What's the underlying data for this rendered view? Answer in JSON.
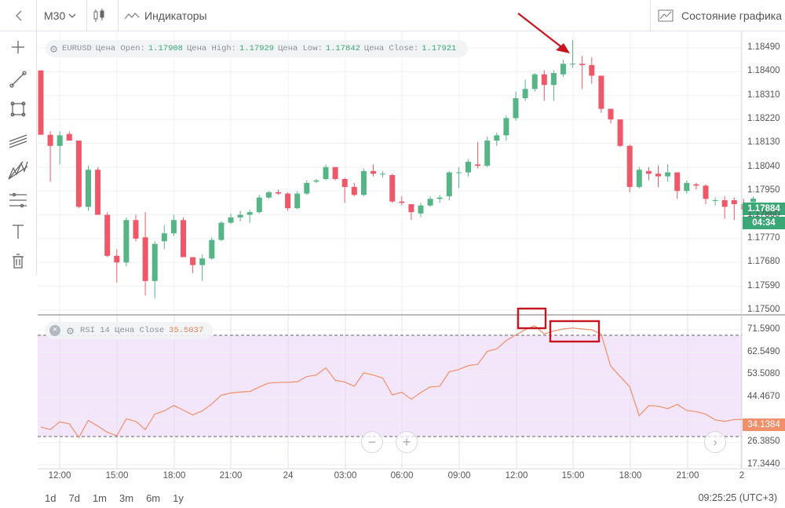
{
  "toolbar": {
    "back_icon": "chevron-left-icon",
    "timeframe": "M30",
    "chart_type_icon": "candlestick-icon",
    "indicators_label": "Индикаторы",
    "chart_state_label": "Состояние графика"
  },
  "drawing_tools": [
    "crosshair-icon",
    "trend-line-icon",
    "rectangle-icon",
    "parallel-channel-icon",
    "pitchfork-icon",
    "fibonacci-icon",
    "text-icon",
    "trash-icon"
  ],
  "main_legend": {
    "symbol": "EURUSD",
    "open_label": "Цена Open:",
    "open": "1.17908",
    "high_label": "Цена High:",
    "high": "1.17929",
    "low_label": "Цена Low:",
    "low": "1.17842",
    "close_label": "Цена Close:",
    "close": "1.17921"
  },
  "rsi_legend": {
    "name": "RSI 14 Цена Close",
    "value": "35.5037"
  },
  "price_axis": {
    "ticks": [
      "1.18490",
      "1.18400",
      "1.18310",
      "1.18220",
      "1.18130",
      "1.18040",
      "1.17950",
      "1.17860",
      "1.17770",
      "1.17680",
      "1.17590",
      "1.17500"
    ],
    "current_price": "1.17884",
    "countdown": "04:34"
  },
  "rsi_axis": {
    "ticks": [
      "71.5900",
      "62.5490",
      "53.5080",
      "44.4670",
      "35.4260",
      "26.3850",
      "17.3440"
    ],
    "current_value": "34.1384"
  },
  "time_axis": [
    "12:00",
    "15:00",
    "18:00",
    "21:00",
    "24",
    "03:00",
    "06:00",
    "09:00",
    "12:00",
    "15:00",
    "18:00",
    "21:00",
    "2"
  ],
  "bottom": {
    "ranges": [
      "1d",
      "7d",
      "1m",
      "3m",
      "6m",
      "1y"
    ],
    "clock": "09:25:25 (UTC+3)"
  },
  "colors": {
    "up": "#56b586",
    "down": "#ef5869",
    "rsi_line": "#f0906a",
    "rsi_band": "#f3e6fb",
    "annotation": "#c8141e"
  },
  "chart_data": [
    {
      "type": "candlestick",
      "symbol": "EURUSD",
      "timeframe": "M30",
      "ylim": [
        1.175,
        1.1853
      ],
      "candles": [
        [
          1.18405,
          1.18405,
          1.18162,
          1.18162
        ],
        [
          1.18162,
          1.18175,
          1.17985,
          1.1812
        ],
        [
          1.1812,
          1.18175,
          1.1805,
          1.1816
        ],
        [
          1.18165,
          1.18175,
          1.1814,
          1.1814
        ],
        [
          1.1814,
          1.1814,
          1.17885,
          1.1789
        ],
        [
          1.1789,
          1.18045,
          1.17875,
          1.1803
        ],
        [
          1.1803,
          1.1804,
          1.1786,
          1.1786
        ],
        [
          1.1786,
          1.1787,
          1.177,
          1.17705
        ],
        [
          1.17705,
          1.1773,
          1.17605,
          1.1768
        ],
        [
          1.1768,
          1.1785,
          1.17665,
          1.1784
        ],
        [
          1.1784,
          1.1786,
          1.1776,
          1.1777
        ],
        [
          1.17775,
          1.1787,
          1.17555,
          1.1761
        ],
        [
          1.1761,
          1.1776,
          1.17545,
          1.1775
        ],
        [
          1.1776,
          1.1782,
          1.1773,
          1.1779
        ],
        [
          1.1779,
          1.1786,
          1.1778,
          1.1784
        ],
        [
          1.1784,
          1.1785,
          1.177,
          1.177
        ],
        [
          1.177,
          1.177,
          1.1764,
          1.1767
        ],
        [
          1.1767,
          1.1771,
          1.1761,
          1.17695
        ],
        [
          1.17695,
          1.17775,
          1.1769,
          1.17765
        ],
        [
          1.17765,
          1.17835,
          1.1776,
          1.1783
        ],
        [
          1.1783,
          1.17865,
          1.17825,
          1.1785
        ],
        [
          1.1785,
          1.17875,
          1.17835,
          1.1786
        ],
        [
          1.1786,
          1.1788,
          1.1783,
          1.1787
        ],
        [
          1.1787,
          1.17935,
          1.17865,
          1.17925
        ],
        [
          1.17925,
          1.1795,
          1.1792,
          1.17945
        ],
        [
          1.17945,
          1.17955,
          1.17935,
          1.1794
        ],
        [
          1.1794,
          1.17945,
          1.17875,
          1.17885
        ],
        [
          1.17885,
          1.1795,
          1.1788,
          1.1794
        ],
        [
          1.1794,
          1.1799,
          1.17935,
          1.1798
        ],
        [
          1.17985,
          1.17995,
          1.1798,
          1.1799
        ],
        [
          1.17995,
          1.1805,
          1.1799,
          1.1804
        ],
        [
          1.1804,
          1.1804,
          1.1799,
          1.17995
        ],
        [
          1.17995,
          1.18,
          1.17905,
          1.17965
        ],
        [
          1.17965,
          1.1798,
          1.1793,
          1.17935
        ],
        [
          1.17935,
          1.18035,
          1.1793,
          1.18025
        ],
        [
          1.18025,
          1.1805,
          1.18005,
          1.18015
        ],
        [
          1.18015,
          1.18025,
          1.18,
          1.18015
        ],
        [
          1.1801,
          1.18015,
          1.17905,
          1.1791
        ],
        [
          1.1791,
          1.1793,
          1.17895,
          1.17905
        ],
        [
          1.179,
          1.179,
          1.1784,
          1.1787
        ],
        [
          1.17865,
          1.17905,
          1.1785,
          1.17895
        ],
        [
          1.17895,
          1.1793,
          1.1789,
          1.1792
        ],
        [
          1.1792,
          1.17935,
          1.17905,
          1.17925
        ],
        [
          1.1793,
          1.18025,
          1.17915,
          1.1802
        ],
        [
          1.1802,
          1.1804,
          1.1796,
          1.1802
        ],
        [
          1.1802,
          1.1807,
          1.18005,
          1.1806
        ],
        [
          1.1805,
          1.18135,
          1.18035,
          1.18045
        ],
        [
          1.18045,
          1.18155,
          1.1804,
          1.1814
        ],
        [
          1.1814,
          1.1817,
          1.1812,
          1.1816
        ],
        [
          1.1816,
          1.18235,
          1.1814,
          1.18225
        ],
        [
          1.18225,
          1.18325,
          1.18215,
          1.183
        ],
        [
          1.183,
          1.1837,
          1.1829,
          1.18335
        ],
        [
          1.18335,
          1.18395,
          1.18325,
          1.1839
        ],
        [
          1.1839,
          1.18405,
          1.1829,
          1.1835
        ],
        [
          1.1835,
          1.18405,
          1.1829,
          1.18395
        ],
        [
          1.1839,
          1.18445,
          1.1838,
          1.1843
        ],
        [
          1.18428,
          1.1852,
          1.18415,
          1.1843
        ],
        [
          1.1843,
          1.1846,
          1.18335,
          1.18425
        ],
        [
          1.18425,
          1.18455,
          1.18355,
          1.18385
        ],
        [
          1.18385,
          1.18385,
          1.18245,
          1.1826
        ],
        [
          1.1826,
          1.1826,
          1.18205,
          1.1822
        ],
        [
          1.1822,
          1.1822,
          1.18115,
          1.1812
        ],
        [
          1.1812,
          1.18125,
          1.17945,
          1.17965
        ],
        [
          1.17965,
          1.1804,
          1.1796,
          1.1803
        ],
        [
          1.18025,
          1.1804,
          1.1799,
          1.18015
        ],
        [
          1.18015,
          1.18045,
          1.17965,
          1.18005
        ],
        [
          1.18005,
          1.1805,
          1.17985,
          1.1802
        ],
        [
          1.1802,
          1.1802,
          1.1792,
          1.1795
        ],
        [
          1.1795,
          1.1799,
          1.1794,
          1.1798
        ],
        [
          1.17975,
          1.1798,
          1.17955,
          1.1797
        ],
        [
          1.1797,
          1.17975,
          1.179,
          1.1792
        ],
        [
          1.17915,
          1.17925,
          1.17895,
          1.17915
        ],
        [
          1.17915,
          1.1793,
          1.17845,
          1.1789
        ],
        [
          1.17915,
          1.17925,
          1.1784,
          1.179
        ],
        [
          1.179,
          1.1792,
          1.1785,
          1.1788
        ],
        [
          1.17908,
          1.17929,
          1.17842,
          1.17921
        ]
      ]
    },
    {
      "type": "line",
      "name": "RSI 14 Цена Close",
      "ylim": [
        17.344,
        75.2
      ],
      "levels": [
        70,
        30
      ],
      "values": [
        32.5,
        31.5,
        34.6,
        33.8,
        28.3,
        35.2,
        32.9,
        30.4,
        29.0,
        35.8,
        34.8,
        31.5,
        37.7,
        39.0,
        41.2,
        39.3,
        37.4,
        39.0,
        41.8,
        45.3,
        46.2,
        46.6,
        46.8,
        48.6,
        50.2,
        50.4,
        50.5,
        50.7,
        52.8,
        53.4,
        56.3,
        51.3,
        50.6,
        48.9,
        54.3,
        53.4,
        52.2,
        45.4,
        46.5,
        43.7,
        46.4,
        48.6,
        48.9,
        54.7,
        55.6,
        57.2,
        57.7,
        62.9,
        63.9,
        67.2,
        69.5,
        71.6,
        73.2,
        69.9,
        71.1,
        71.9,
        72.3,
        71.9,
        71.6,
        69.8,
        57.0,
        52.8,
        48.7,
        37.1,
        41.1,
        40.9,
        39.9,
        41.6,
        39.2,
        38.7,
        37.7,
        35.4,
        34.8,
        35.5,
        35.6,
        35.5
      ]
    }
  ],
  "annotations": {
    "arrow": "red arrow pointing to top candle",
    "boxes": 2
  }
}
